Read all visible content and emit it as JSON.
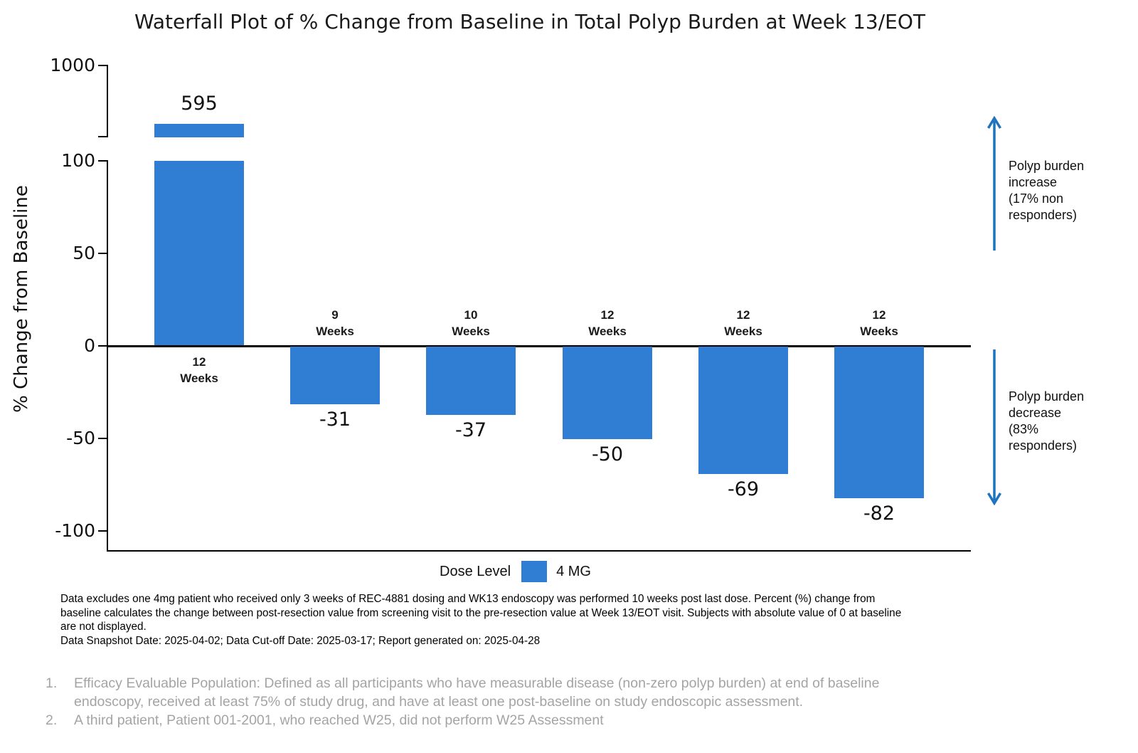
{
  "title": "Waterfall Plot of % Change from Baseline in Total Polyp Burden at Week 13/EOT",
  "colors": {
    "bar": "#2F7ED4",
    "arrow": "#1E73BE",
    "footnote_gray": "#A4A4A4"
  },
  "chart_data": {
    "type": "bar",
    "title": "Waterfall Plot of % Change from Baseline in Total Polyp Burden at Week 13/EOT",
    "xlabel": "",
    "ylabel": "% Change from Baseline",
    "ylim": [
      -100,
      100
    ],
    "axis_break": {
      "between": [
        100,
        1000
      ],
      "note": "first bar clipped at break"
    },
    "yticks": [
      {
        "label": "1000",
        "value": 1000
      },
      {
        "label": "100",
        "value": 100
      },
      {
        "label": "50",
        "value": 50
      },
      {
        "label": "0",
        "value": 0
      },
      {
        "label": "-50",
        "value": -50
      },
      {
        "label": "-100",
        "value": -100
      }
    ],
    "grid": false,
    "series": [
      {
        "name": "4 MG",
        "color": "#2F7ED4"
      }
    ],
    "bars": [
      {
        "weeks": "12",
        "unit": "Weeks",
        "value": 595,
        "value_label": "595",
        "clipped": true
      },
      {
        "weeks": "9",
        "unit": "Weeks",
        "value": -31,
        "value_label": "-31",
        "clipped": false
      },
      {
        "weeks": "10",
        "unit": "Weeks",
        "value": -37,
        "value_label": "-37",
        "clipped": false
      },
      {
        "weeks": "12",
        "unit": "Weeks",
        "value": -50,
        "value_label": "-50",
        "clipped": false
      },
      {
        "weeks": "12",
        "unit": "Weeks",
        "value": -69,
        "value_label": "-69",
        "clipped": false
      },
      {
        "weeks": "12",
        "unit": "Weeks",
        "value": -82,
        "value_label": "-82",
        "clipped": false
      }
    ],
    "legend": {
      "position": "bottom",
      "title": "Dose Level",
      "entries": [
        {
          "label": "4 MG",
          "color": "#2F7ED4"
        }
      ]
    }
  },
  "annotations": {
    "increase": {
      "lines": [
        "Polyp burden",
        "increase",
        "(17% non",
        "responders)"
      ]
    },
    "decrease": {
      "lines": [
        "Polyp burden",
        "decrease",
        "(83%",
        "responders)"
      ]
    }
  },
  "footnotes": {
    "lines": [
      "Data excludes one 4mg patient who received only 3 weeks of REC-4881 dosing and WK13 endoscopy was performed 10 weeks post last dose. Percent (%) change from",
      "baseline calculates the change between post-resection value from screening visit to the pre-resection value at Week 13/EOT visit. Subjects with absolute value of 0 at baseline",
      "are not displayed.",
      "Data Snapshot Date: 2025-04-02; Data Cut-off Date: 2025-03-17; Report generated on: 2025-04-28"
    ]
  },
  "numbered_footnotes": [
    {
      "number": "1.",
      "lines": [
        "Efficacy Evaluable Population: Defined as all participants who have measurable disease (non-zero polyp burden) at end of baseline",
        "endoscopy, received at least 75% of study drug, and have at least one post-baseline on study endoscopic assessment."
      ]
    },
    {
      "number": "2.",
      "lines": [
        "A third patient, Patient 001-2001, who reached W25, did not perform W25 Assessment"
      ]
    }
  ]
}
